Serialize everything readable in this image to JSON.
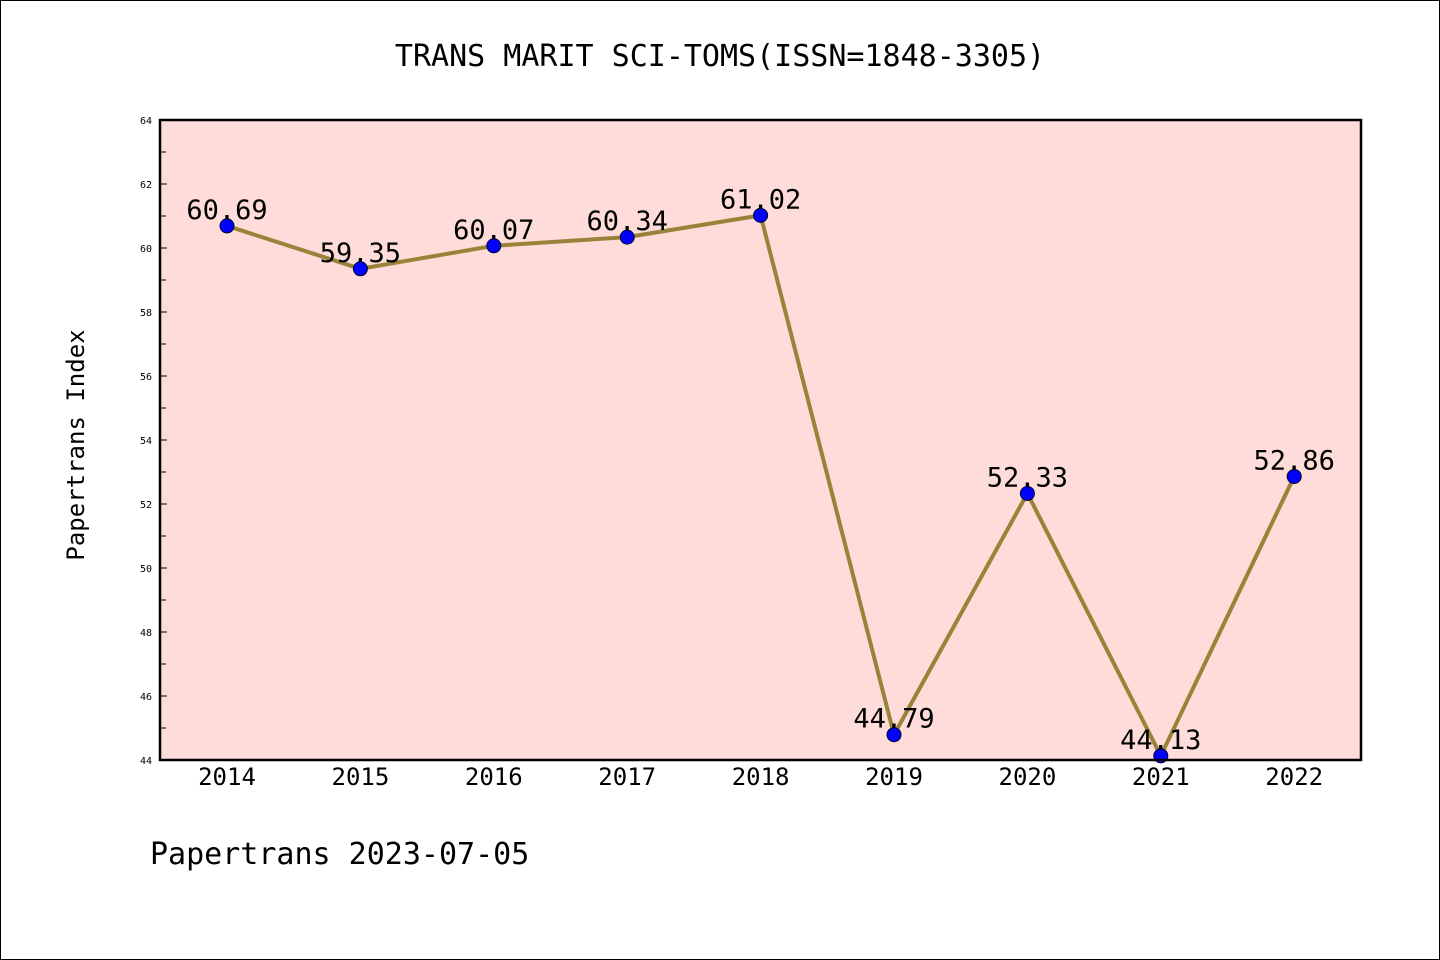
{
  "chart_data": {
    "type": "line",
    "title": "TRANS MARIT SCI-TOMS(ISSN=1848-3305)",
    "xlabel": "",
    "ylabel": "Papertrans Index",
    "categories": [
      "2014",
      "2015",
      "2016",
      "2017",
      "2018",
      "2019",
      "2020",
      "2021",
      "2022"
    ],
    "series": [
      {
        "values": [
          60.69,
          59.35,
          60.07,
          60.34,
          61.02,
          44.79,
          52.33,
          44.13,
          52.86
        ],
        "data_labels": [
          "60.69",
          "59.35",
          "60.07",
          "60.34",
          "61.02",
          "44.79",
          "52.33",
          "44.13",
          "52.86"
        ]
      }
    ],
    "ylim": [
      44,
      64
    ],
    "yticks": [
      "44",
      "46",
      "48",
      "50",
      "52",
      "54",
      "56",
      "58",
      "60",
      "62",
      "64"
    ],
    "grid": false,
    "colors": {
      "plot_background": "#fddcd9",
      "line": "#9b8239",
      "marker": "#0000ff"
    }
  },
  "footer": "Papertrans 2023-07-05"
}
